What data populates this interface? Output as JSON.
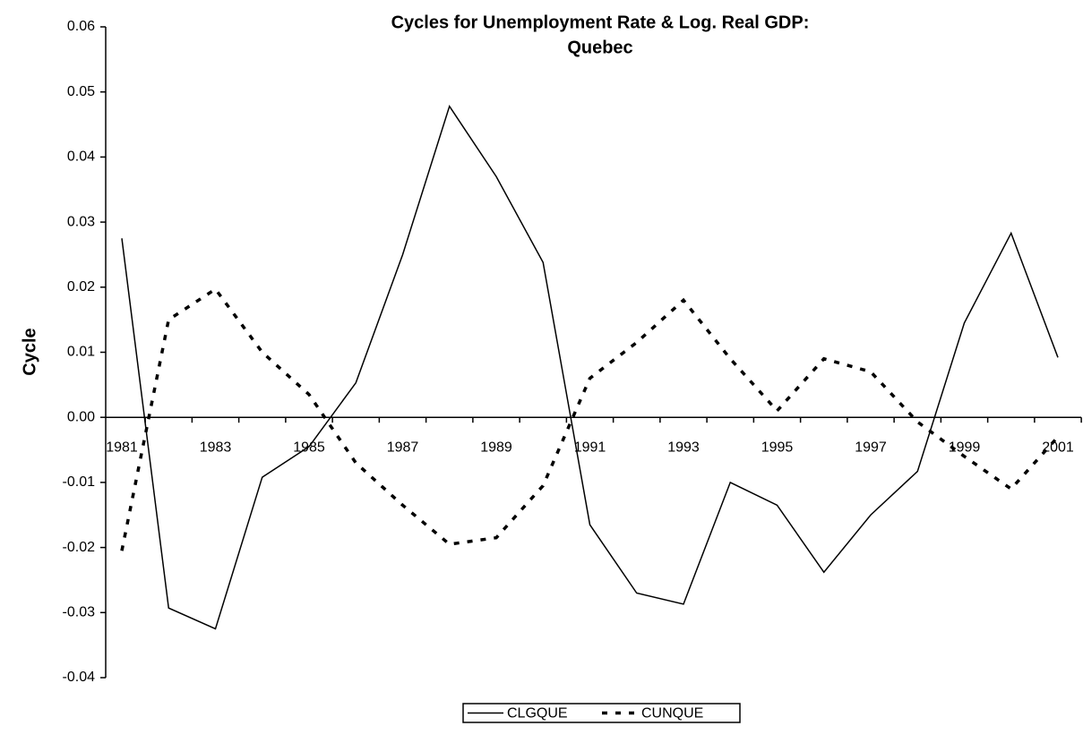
{
  "chart_data": {
    "type": "line",
    "title": [
      "Cycles for Unemployment Rate & Log. Real GDP:",
      "Quebec"
    ],
    "y_label": "Cycle",
    "categories": [
      "1981",
      null,
      "1983",
      null,
      "1985",
      null,
      "1987",
      null,
      "1989",
      null,
      "1991",
      null,
      "1993",
      null,
      "1995",
      null,
      "1997",
      null,
      "1999",
      null,
      "2001"
    ],
    "series": [
      {
        "name": "CLGQUE",
        "color": "#000000",
        "dash": "solid",
        "values": [
          0.0275,
          -0.0293,
          -0.0325,
          -0.0092,
          -0.0045,
          0.0053,
          0.025,
          0.0478,
          0.037,
          0.0238,
          -0.0165,
          -0.027,
          -0.0287,
          -0.01,
          -0.0135,
          -0.0238,
          -0.015,
          -0.0083,
          0.0145,
          0.0283,
          0.0092
        ]
      },
      {
        "name": "CUNQUE",
        "color": "#000000",
        "dash": "dashed",
        "values": [
          -0.0205,
          0.015,
          0.0197,
          0.01,
          0.0035,
          -0.007,
          -0.0135,
          -0.0195,
          -0.0185,
          -0.0105,
          0.006,
          0.0115,
          0.018,
          0.009,
          0.001,
          0.009,
          0.007,
          -0.0007,
          -0.006,
          -0.011,
          -0.003
        ]
      }
    ],
    "ylim": [
      -0.04,
      0.06
    ],
    "yticks": [
      -0.04,
      -0.03,
      -0.02,
      -0.01,
      {
        "value": 0,
        "label": "0.00"
      },
      0.01,
      0.02,
      0.03,
      0.04,
      0.05,
      0.06
    ],
    "legend": "bottom"
  }
}
